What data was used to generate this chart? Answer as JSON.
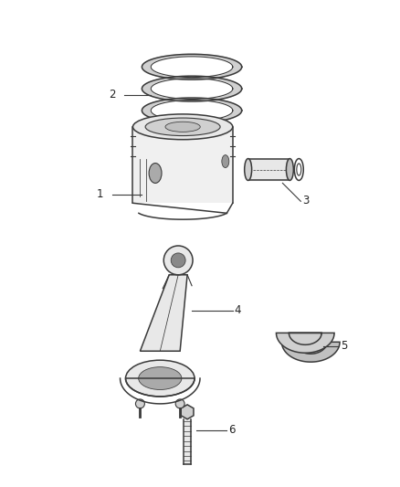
{
  "background_color": "#ffffff",
  "fig_width": 4.38,
  "fig_height": 5.33,
  "dpi": 100,
  "line_color": "#3a3a3a",
  "face_color": "#e8e8e8",
  "face_color2": "#d0d0d0",
  "face_color3": "#c0c0c0"
}
